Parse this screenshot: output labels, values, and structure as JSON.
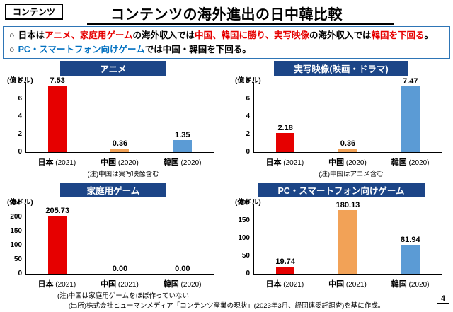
{
  "page": {
    "tag": "コンテンツ",
    "title": "コンテンツの海外進出の日中韓比較",
    "page_number": "4",
    "source": "(出所)株式会社ヒューマンメディア「コンテンツ産業の現状」(2023年3月、経団連委託調査)を基に作成。"
  },
  "summary": {
    "bullets": [
      {
        "segments": [
          {
            "text": "日本は",
            "color": "black"
          },
          {
            "text": "アニメ、家庭用ゲーム",
            "color": "red"
          },
          {
            "text": "の海外収入では",
            "color": "black"
          },
          {
            "text": "中国、韓国に勝り、実写映像",
            "color": "red"
          },
          {
            "text": "の海外収入では",
            "color": "black"
          },
          {
            "text": "韓国を下回る",
            "color": "red"
          },
          {
            "text": "。",
            "color": "black"
          }
        ]
      },
      {
        "segments": [
          {
            "text": "PC・スマートフォン向けゲーム",
            "color": "blue"
          },
          {
            "text": "では中国・韓国を下回る。",
            "color": "black"
          }
        ]
      }
    ]
  },
  "colors": {
    "header_bg": "#1c4587",
    "header_text": "#ffffff",
    "box_border": "#2e75b6",
    "japan_bar": "#e60000",
    "china_bar": "#f2a257",
    "korea_bar": "#5b9bd5",
    "text_black": "#000000",
    "text_red": "#e60000",
    "text_blue": "#0070c0"
  },
  "chart_data": [
    {
      "type": "bar",
      "title": "アニメ",
      "unit": "(億ドル)",
      "categories": [
        "日本",
        "中国",
        "韓国"
      ],
      "x_labels": [
        {
          "name": "日本",
          "year": "(2021)"
        },
        {
          "name": "中国",
          "year": "(2020)"
        },
        {
          "name": "韓国",
          "year": "(2020)"
        }
      ],
      "values": [
        7.53,
        0.36,
        1.35
      ],
      "bar_colors": [
        "#e60000",
        "#f2a257",
        "#5b9bd5"
      ],
      "ylim": [
        0,
        8
      ],
      "yticks": [
        0,
        2,
        4,
        6,
        8
      ],
      "note": "(注)中国は実写映像含む"
    },
    {
      "type": "bar",
      "title": "実写映像(映画・ドラマ)",
      "unit": "(億ドル)",
      "categories": [
        "日本",
        "中国",
        "韓国"
      ],
      "x_labels": [
        {
          "name": "日本",
          "year": "(2021)"
        },
        {
          "name": "中国",
          "year": "(2020)"
        },
        {
          "name": "韓国",
          "year": "(2020)"
        }
      ],
      "values": [
        2.18,
        0.36,
        7.47
      ],
      "bar_colors": [
        "#e60000",
        "#f2a257",
        "#5b9bd5"
      ],
      "ylim": [
        0,
        8
      ],
      "yticks": [
        0,
        2,
        4,
        6,
        8
      ],
      "note": "(注)中国はアニメ含む"
    },
    {
      "type": "bar",
      "title": "家庭用ゲーム",
      "unit": "(億ドル)",
      "categories": [
        "日本",
        "中国",
        "韓国"
      ],
      "x_labels": [
        {
          "name": "日本",
          "year": "(2021)"
        },
        {
          "name": "中国",
          "year": "(2021)"
        },
        {
          "name": "韓国",
          "year": "(2020)"
        }
      ],
      "values": [
        205.73,
        0.0,
        0.0
      ],
      "bar_colors": [
        "#e60000",
        "#f2a257",
        "#5b9bd5"
      ],
      "ylim": [
        0,
        250
      ],
      "yticks": [
        0,
        50,
        100,
        150,
        200,
        250
      ],
      "note": "(注)中国は家庭用ゲームをほぼ作っていない"
    },
    {
      "type": "bar",
      "title": "PC・スマートフォン向けゲーム",
      "unit": "(億ドル)",
      "categories": [
        "日本",
        "中国",
        "韓国"
      ],
      "x_labels": [
        {
          "name": "日本",
          "year": "(2021)"
        },
        {
          "name": "中国",
          "year": "(2021)"
        },
        {
          "name": "韓国",
          "year": "(2020)"
        }
      ],
      "values": [
        19.74,
        180.13,
        81.94
      ],
      "bar_colors": [
        "#e60000",
        "#f2a257",
        "#5b9bd5"
      ],
      "ylim": [
        0,
        200
      ],
      "yticks": [
        0,
        50,
        100,
        150,
        200
      ],
      "note": ""
    }
  ]
}
